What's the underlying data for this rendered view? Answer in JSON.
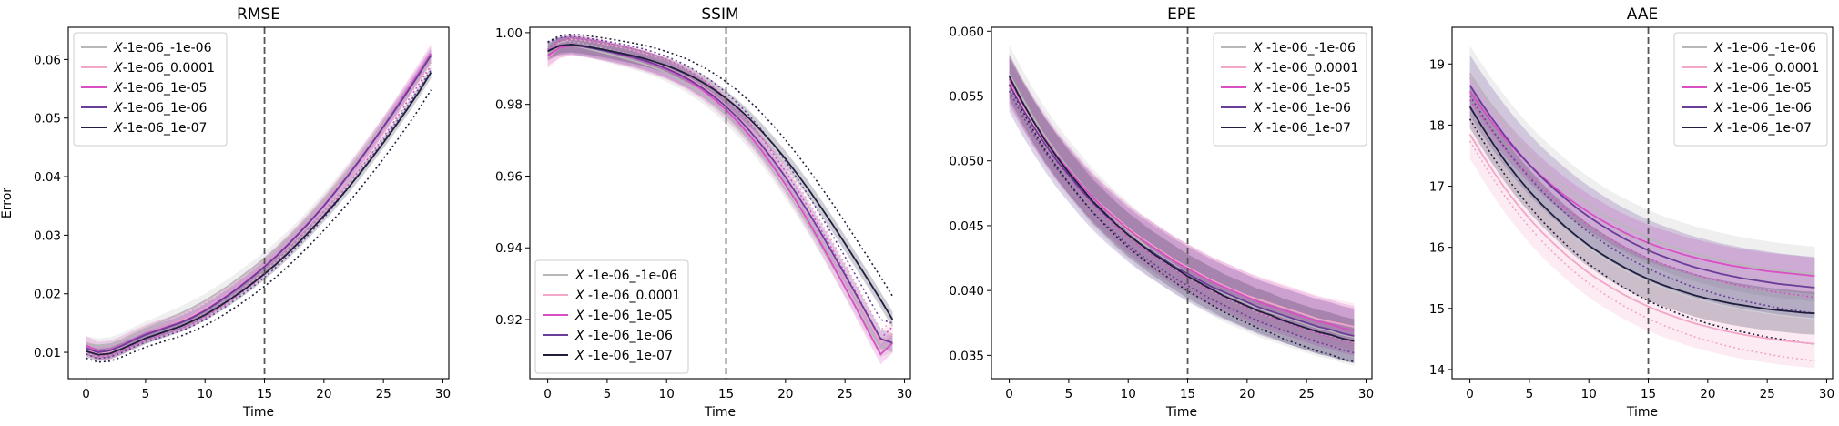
{
  "figure": {
    "ylabel_left": "Error",
    "vline_x": 15
  },
  "legend_labels": [
    "-1e-06_-1e-06",
    "-1e-06_0.0001",
    "-1e-06_1e-05",
    "-1e-06_1e-06",
    "-1e-06_1e-07"
  ],
  "legend_prefix": "X",
  "series_colors": [
    "#b8b8b8",
    "#f2a6c8",
    "#d94fc4",
    "#6a3d9a",
    "#1f1f3d"
  ],
  "chart_data": [
    {
      "type": "line",
      "title": "RMSE",
      "xlabel": "Time",
      "ylabel": "Error",
      "xlim": [
        -1.5,
        30.5
      ],
      "ylim": [
        0.0055,
        0.0655
      ],
      "xticks": [
        0,
        5,
        10,
        15,
        20,
        25,
        30
      ],
      "yticks": [
        0.01,
        0.02,
        0.03,
        0.04,
        0.05,
        0.06
      ],
      "yticklabels": [
        "0.01",
        "0.02",
        "0.03",
        "0.04",
        "0.05",
        "0.06"
      ],
      "legend": "top-left",
      "x": [
        0,
        1,
        2,
        3,
        4,
        5,
        6,
        7,
        8,
        9,
        10,
        11,
        12,
        13,
        14,
        15,
        16,
        17,
        18,
        19,
        20,
        21,
        22,
        23,
        24,
        25,
        26,
        27,
        28,
        29
      ],
      "series": [
        {
          "name": "-1e-06_-1e-06",
          "values": [
            0.0115,
            0.0112,
            0.0114,
            0.0121,
            0.0131,
            0.0141,
            0.0149,
            0.0158,
            0.0167,
            0.0177,
            0.0188,
            0.0201,
            0.0214,
            0.0229,
            0.0244,
            0.026,
            0.0277,
            0.0296,
            0.0316,
            0.0338,
            0.0361,
            0.0385,
            0.041,
            0.0436,
            0.0463,
            0.049,
            0.0518,
            0.0546,
            0.0575,
            0.0605
          ],
          "band": 0.0012
        },
        {
          "name": "-1e-06_0.0001",
          "values": [
            0.0105,
            0.0098,
            0.0101,
            0.011,
            0.0121,
            0.0131,
            0.0139,
            0.0146,
            0.0154,
            0.0163,
            0.0174,
            0.0186,
            0.02,
            0.0215,
            0.0231,
            0.0248,
            0.0266,
            0.0286,
            0.0307,
            0.0329,
            0.0352,
            0.0377,
            0.0403,
            0.043,
            0.0458,
            0.0487,
            0.0516,
            0.0546,
            0.0577,
            0.0608
          ],
          "band": 0.0014
        },
        {
          "name": "-1e-06_1e-05",
          "values": [
            0.0112,
            0.0102,
            0.0104,
            0.0112,
            0.0122,
            0.0131,
            0.0138,
            0.0145,
            0.0152,
            0.0161,
            0.0172,
            0.0185,
            0.0199,
            0.0214,
            0.023,
            0.0247,
            0.0265,
            0.0285,
            0.0306,
            0.0328,
            0.0351,
            0.0376,
            0.0402,
            0.0429,
            0.0457,
            0.0486,
            0.0516,
            0.0547,
            0.0578,
            0.061
          ],
          "band": 0.0016
        },
        {
          "name": "-1e-06_1e-06",
          "values": [
            0.0107,
            0.01,
            0.0103,
            0.0111,
            0.0121,
            0.013,
            0.0137,
            0.0144,
            0.0151,
            0.016,
            0.0171,
            0.0184,
            0.0198,
            0.0213,
            0.0229,
            0.0246,
            0.0264,
            0.0284,
            0.0305,
            0.0327,
            0.035,
            0.0375,
            0.0401,
            0.0428,
            0.0456,
            0.0485,
            0.0514,
            0.0544,
            0.0575,
            0.0607
          ],
          "band": 0.0011
        },
        {
          "name": "-1e-06_1e-07",
          "values": [
            0.0102,
            0.0096,
            0.0098,
            0.0106,
            0.0115,
            0.0124,
            0.0131,
            0.0138,
            0.0145,
            0.0154,
            0.0164,
            0.0176,
            0.0189,
            0.0203,
            0.0218,
            0.0234,
            0.0251,
            0.027,
            0.029,
            0.0311,
            0.0333,
            0.0356,
            0.038,
            0.0405,
            0.0431,
            0.0458,
            0.0486,
            0.0515,
            0.0545,
            0.0578
          ],
          "band": 0.001
        }
      ]
    },
    {
      "type": "line",
      "title": "SSIM",
      "xlabel": "Time",
      "ylabel": "",
      "xlim": [
        -1.5,
        30.5
      ],
      "ylim": [
        0.9035,
        1.0015
      ],
      "xticks": [
        0,
        5,
        10,
        15,
        20,
        25,
        30
      ],
      "yticks": [
        0.92,
        0.94,
        0.96,
        0.98,
        1.0
      ],
      "yticklabels": [
        "0.92",
        "0.94",
        "0.96",
        "0.98",
        "1.00"
      ],
      "legend": "bottom-left",
      "x": [
        0,
        1,
        2,
        3,
        4,
        5,
        6,
        7,
        8,
        9,
        10,
        11,
        12,
        13,
        14,
        15,
        16,
        17,
        18,
        19,
        20,
        21,
        22,
        23,
        24,
        25,
        26,
        27,
        28,
        29
      ],
      "series": [
        {
          "name": "-1e-06_-1e-06",
          "values": [
            0.9945,
            0.9962,
            0.9965,
            0.9958,
            0.995,
            0.9942,
            0.9933,
            0.9924,
            0.9914,
            0.9902,
            0.9888,
            0.9871,
            0.9851,
            0.9828,
            0.9801,
            0.977,
            0.9736,
            0.9698,
            0.9656,
            0.9611,
            0.9563,
            0.9512,
            0.9459,
            0.9404,
            0.9347,
            0.929,
            0.9232,
            0.9175,
            0.912,
            0.9135
          ],
          "band": 0.0025
        },
        {
          "name": "-1e-06_0.0001",
          "values": [
            0.993,
            0.9958,
            0.9966,
            0.9962,
            0.9956,
            0.9949,
            0.9941,
            0.9933,
            0.9924,
            0.9914,
            0.9902,
            0.9887,
            0.987,
            0.9849,
            0.9825,
            0.9797,
            0.9765,
            0.9729,
            0.9689,
            0.9646,
            0.9599,
            0.9549,
            0.9496,
            0.944,
            0.9382,
            0.9322,
            0.9261,
            0.9199,
            0.9137,
            0.916
          ],
          "band": 0.003
        },
        {
          "name": "-1e-06_1e-05",
          "values": [
            0.9935,
            0.9958,
            0.9965,
            0.9961,
            0.9955,
            0.9948,
            0.994,
            0.9932,
            0.9922,
            0.9911,
            0.9898,
            0.9882,
            0.9863,
            0.9841,
            0.9815,
            0.9785,
            0.9751,
            0.9713,
            0.9671,
            0.9625,
            0.9576,
            0.9524,
            0.9469,
            0.9411,
            0.9351,
            0.929,
            0.9228,
            0.9165,
            0.9103,
            0.9135
          ],
          "band": 0.0028
        },
        {
          "name": "-1e-06_1e-06",
          "values": [
            0.995,
            0.9963,
            0.9966,
            0.9961,
            0.9955,
            0.9948,
            0.9941,
            0.9933,
            0.9924,
            0.9913,
            0.99,
            0.9885,
            0.9867,
            0.9846,
            0.9822,
            0.9794,
            0.9762,
            0.9726,
            0.9686,
            0.9643,
            0.9597,
            0.9547,
            0.9495,
            0.944,
            0.9383,
            0.9325,
            0.9266,
            0.9206,
            0.9146,
            0.9135
          ],
          "band": 0.0026
        },
        {
          "name": "-1e-06_1e-07",
          "values": [
            0.9948,
            0.9964,
            0.9967,
            0.9963,
            0.9957,
            0.9951,
            0.9944,
            0.9937,
            0.9929,
            0.9919,
            0.9908,
            0.9895,
            0.988,
            0.9862,
            0.9841,
            0.9817,
            0.979,
            0.9759,
            0.9725,
            0.9688,
            0.9648,
            0.9605,
            0.956,
            0.9512,
            0.9463,
            0.9412,
            0.936,
            0.9308,
            0.9255,
            0.92
          ],
          "band": 0.0022
        }
      ]
    },
    {
      "type": "line",
      "title": "EPE",
      "xlabel": "Time",
      "ylabel": "",
      "xlim": [
        -1.5,
        30.5
      ],
      "ylim": [
        0.0332,
        0.0603
      ],
      "xticks": [
        0,
        5,
        10,
        15,
        20,
        25,
        30
      ],
      "yticks": [
        0.035,
        0.04,
        0.045,
        0.05,
        0.055,
        0.06
      ],
      "yticklabels": [
        "0.035",
        "0.040",
        "0.045",
        "0.050",
        "0.055",
        "0.060"
      ],
      "legend": "top-right",
      "x": [
        0,
        1,
        2,
        3,
        4,
        5,
        6,
        7,
        8,
        9,
        10,
        11,
        12,
        13,
        14,
        15,
        16,
        17,
        18,
        19,
        20,
        21,
        22,
        23,
        24,
        25,
        26,
        27,
        28,
        29
      ],
      "series": [
        {
          "name": "-1e-06_-1e-06",
          "values": [
            0.0567,
            0.055,
            0.0534,
            0.0519,
            0.0506,
            0.0494,
            0.0483,
            0.0472,
            0.0463,
            0.0454,
            0.0446,
            0.0438,
            0.0431,
            0.0425,
            0.0419,
            0.0413,
            0.0408,
            0.0403,
            0.0398,
            0.0394,
            0.039,
            0.0386,
            0.0383,
            0.038,
            0.0377,
            0.0374,
            0.0371,
            0.0369,
            0.0366,
            0.0364
          ],
          "band": 0.0022
        },
        {
          "name": "-1e-06_0.0001",
          "values": [
            0.056,
            0.0544,
            0.0529,
            0.0515,
            0.0503,
            0.0492,
            0.0482,
            0.0472,
            0.0464,
            0.0456,
            0.0448,
            0.0441,
            0.0435,
            0.0429,
            0.0423,
            0.0418,
            0.0413,
            0.0408,
            0.0404,
            0.04,
            0.0396,
            0.0393,
            0.039,
            0.0387,
            0.0384,
            0.0381,
            0.0378,
            0.0376,
            0.0374,
            0.0372
          ],
          "band": 0.0018
        },
        {
          "name": "-1e-06_1e-05",
          "values": [
            0.0563,
            0.0546,
            0.0531,
            0.0517,
            0.0504,
            0.0493,
            0.0482,
            0.0472,
            0.0463,
            0.0455,
            0.0447,
            0.044,
            0.0434,
            0.0428,
            0.0422,
            0.0417,
            0.0412,
            0.0407,
            0.0403,
            0.0399,
            0.0395,
            0.0391,
            0.0388,
            0.0385,
            0.0382,
            0.0379,
            0.0376,
            0.0374,
            0.0371,
            0.0369
          ],
          "band": 0.0019
        },
        {
          "name": "-1e-06_1e-06",
          "values": [
            0.0559,
            0.0542,
            0.0527,
            0.0513,
            0.05,
            0.0489,
            0.0478,
            0.0468,
            0.0459,
            0.0451,
            0.0443,
            0.0436,
            0.043,
            0.0424,
            0.0418,
            0.0413,
            0.0408,
            0.0403,
            0.0399,
            0.0395,
            0.0391,
            0.0387,
            0.0384,
            0.0381,
            0.0378,
            0.0375,
            0.0372,
            0.037,
            0.0367,
            0.0365
          ],
          "band": 0.0021
        },
        {
          "name": "-1e-06_1e-07",
          "values": [
            0.0565,
            0.0547,
            0.0531,
            0.0516,
            0.0503,
            0.0491,
            0.048,
            0.0469,
            0.046,
            0.0451,
            0.0443,
            0.0436,
            0.0429,
            0.0423,
            0.0417,
            0.0411,
            0.0406,
            0.0401,
            0.0396,
            0.0392,
            0.0388,
            0.0384,
            0.0381,
            0.0377,
            0.0374,
            0.0371,
            0.0368,
            0.0366,
            0.0363,
            0.0361
          ],
          "band": 0.0017
        }
      ]
    },
    {
      "type": "line",
      "title": "AAE",
      "xlabel": "Time",
      "ylabel": "",
      "xlim": [
        -1.5,
        30.5
      ],
      "ylim": [
        13.85,
        19.6
      ],
      "xticks": [
        0,
        5,
        10,
        15,
        20,
        25,
        30
      ],
      "yticks": [
        14,
        15,
        16,
        17,
        18,
        19
      ],
      "yticklabels": [
        "14",
        "15",
        "16",
        "17",
        "18",
        "19"
      ],
      "legend": "top-right",
      "x": [
        0,
        1,
        2,
        3,
        4,
        5,
        6,
        7,
        8,
        9,
        10,
        11,
        12,
        13,
        14,
        15,
        16,
        17,
        18,
        19,
        20,
        21,
        22,
        23,
        24,
        25,
        26,
        27,
        28,
        29
      ],
      "series": [
        {
          "name": "-1e-06_-1e-06",
          "values": [
            18.85,
            18.55,
            18.27,
            18.01,
            17.77,
            17.55,
            17.35,
            17.17,
            17.0,
            16.84,
            16.7,
            16.57,
            16.45,
            16.35,
            16.25,
            16.16,
            16.08,
            16.01,
            15.95,
            15.89,
            15.84,
            15.79,
            15.75,
            15.71,
            15.68,
            15.65,
            15.62,
            15.6,
            15.58,
            15.56
          ],
          "band": 0.45
        },
        {
          "name": "-1e-06_0.0001",
          "values": [
            17.85,
            17.53,
            17.23,
            16.95,
            16.7,
            16.47,
            16.26,
            16.07,
            15.89,
            15.73,
            15.58,
            15.45,
            15.33,
            15.22,
            15.12,
            15.03,
            14.95,
            14.88,
            14.81,
            14.75,
            14.7,
            14.65,
            14.61,
            14.57,
            14.54,
            14.51,
            14.48,
            14.46,
            14.44,
            14.42
          ],
          "band": 0.4
        },
        {
          "name": "-1e-06_1e-05",
          "values": [
            18.55,
            18.27,
            18.01,
            17.77,
            17.55,
            17.35,
            17.17,
            17.0,
            16.84,
            16.7,
            16.57,
            16.45,
            16.34,
            16.24,
            16.15,
            16.07,
            16.0,
            15.94,
            15.88,
            15.83,
            15.78,
            15.74,
            15.7,
            15.67,
            15.64,
            15.61,
            15.59,
            15.57,
            15.55,
            15.53
          ],
          "band": 0.3
        },
        {
          "name": "-1e-06_1e-06",
          "values": [
            18.65,
            18.35,
            18.07,
            17.81,
            17.57,
            17.35,
            17.15,
            16.97,
            16.8,
            16.64,
            16.5,
            16.37,
            16.25,
            16.14,
            16.04,
            15.95,
            15.87,
            15.8,
            15.73,
            15.67,
            15.62,
            15.57,
            15.53,
            15.49,
            15.46,
            15.43,
            15.4,
            15.38,
            15.36,
            15.34
          ],
          "band": 0.5
        },
        {
          "name": "-1e-06_1e-07",
          "values": [
            18.3,
            17.98,
            17.68,
            17.4,
            17.15,
            16.92,
            16.71,
            16.52,
            16.34,
            16.18,
            16.03,
            15.9,
            15.78,
            15.67,
            15.57,
            15.48,
            15.4,
            15.33,
            15.27,
            15.21,
            15.16,
            15.12,
            15.08,
            15.05,
            15.02,
            14.99,
            14.97,
            14.95,
            14.93,
            14.92
          ],
          "band": 0.35
        }
      ]
    }
  ]
}
